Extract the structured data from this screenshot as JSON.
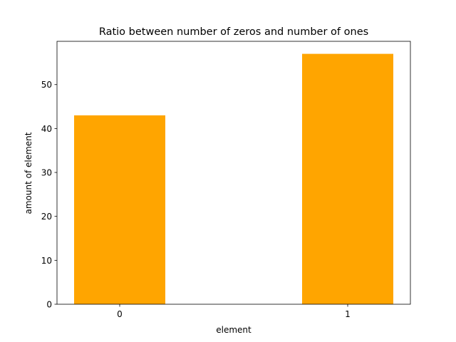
{
  "chart_data": {
    "type": "bar",
    "title": "Ratio between number of zeros and number of ones",
    "xlabel": "element",
    "ylabel": "amount of element",
    "categories": [
      "0",
      "1"
    ],
    "values": [
      43,
      57
    ],
    "x_positions": [
      0,
      1
    ],
    "xlim": [
      -0.275,
      1.275
    ],
    "ylim": [
      0,
      59.85
    ],
    "yticks": [
      0,
      10,
      20,
      30,
      40,
      50
    ],
    "bar_color": "#ffa500",
    "grid": false,
    "legend": "none"
  }
}
